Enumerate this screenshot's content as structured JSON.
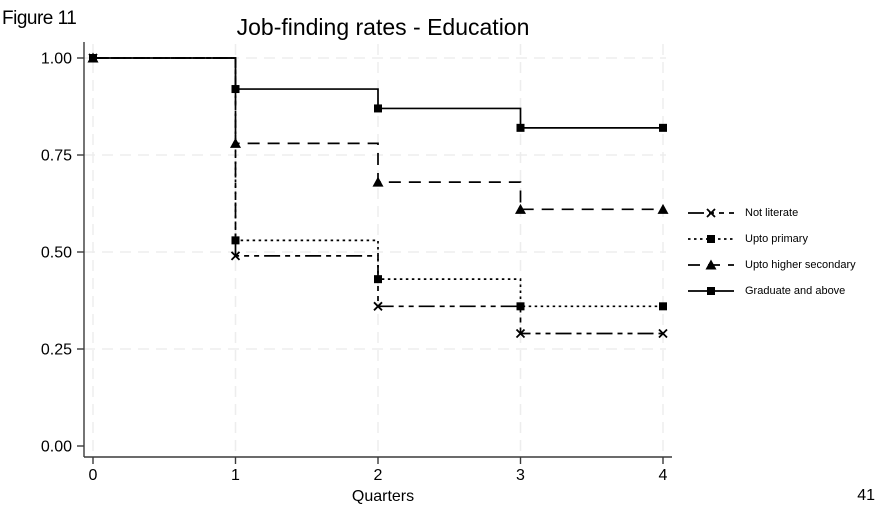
{
  "figure_label": "Figure 11",
  "page_number": "41",
  "chart_data": {
    "type": "line",
    "subtype": "step",
    "title": "Job-finding rates - Education",
    "xlabel": "Quarters",
    "ylabel": "",
    "x": [
      0,
      1,
      2,
      3,
      4
    ],
    "xlim": [
      0,
      4
    ],
    "ylim": [
      0.0,
      1.0
    ],
    "xtick_labels": [
      "0",
      "1",
      "2",
      "3",
      "4"
    ],
    "yticks": [
      0.0,
      0.25,
      0.5,
      0.75,
      1.0
    ],
    "ytick_labels": [
      "0.00",
      "0.25",
      "0.50",
      "0.75",
      "1.00"
    ],
    "grid": true,
    "legend_position": "right",
    "series": [
      {
        "name": "Not literate",
        "values": [
          1.0,
          0.49,
          0.36,
          0.29,
          0.29
        ],
        "line_style": "dash-dot",
        "marker": "x"
      },
      {
        "name": "Upto primary",
        "values": [
          1.0,
          0.53,
          0.43,
          0.36,
          0.36
        ],
        "line_style": "dotted",
        "marker": "square"
      },
      {
        "name": "Upto higher secondary",
        "values": [
          1.0,
          0.78,
          0.68,
          0.61,
          0.61
        ],
        "line_style": "dashed",
        "marker": "triangle"
      },
      {
        "name": "Graduate and above",
        "values": [
          1.0,
          0.92,
          0.87,
          0.82,
          0.82
        ],
        "line_style": "solid",
        "marker": "square"
      }
    ],
    "colors": {
      "line": "#000000",
      "grid": "#ededed",
      "axis": "#3a3a3a",
      "text": "#000000"
    }
  }
}
